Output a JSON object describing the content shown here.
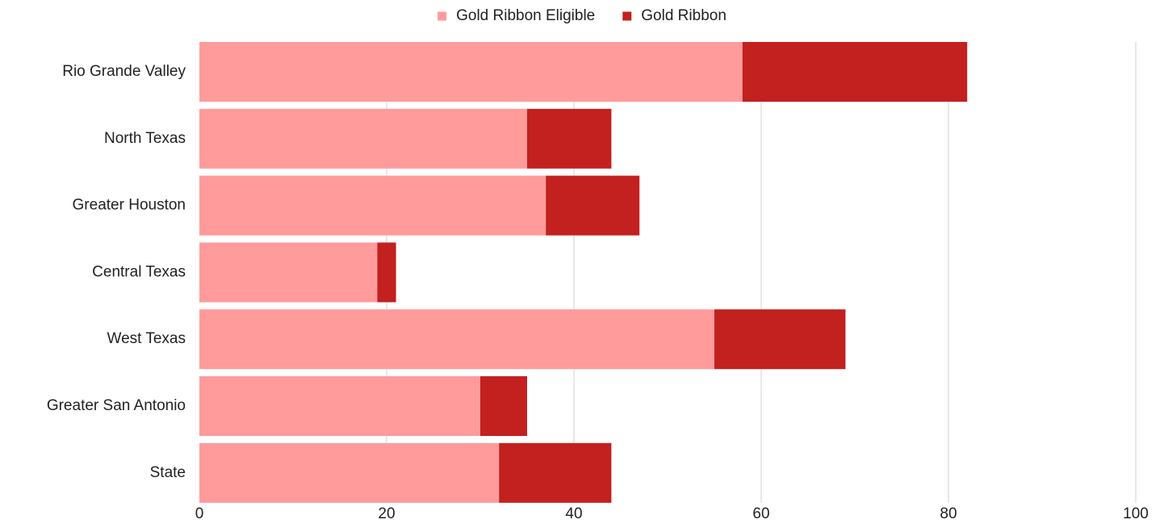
{
  "chart_data": {
    "type": "bar",
    "orientation": "horizontal",
    "stacked": true,
    "categories": [
      "Rio Grande Valley",
      "North Texas",
      "Greater Houston",
      "Central Texas",
      "West Texas",
      "Greater San Antonio",
      "State"
    ],
    "series": [
      {
        "name": "Gold Ribbon Eligible",
        "color": "#ff9b9b",
        "values": [
          58,
          35,
          37,
          19,
          55,
          30,
          32
        ]
      },
      {
        "name": "Gold Ribbon",
        "color": "#c32020",
        "values": [
          24,
          9,
          10,
          2,
          14,
          5,
          12
        ]
      }
    ],
    "xlim": [
      0,
      100
    ],
    "x_ticks": [
      0,
      20,
      40,
      60,
      80,
      100
    ],
    "x_tick_labels": [
      "0",
      "20",
      "40",
      "60",
      "80",
      "100"
    ],
    "grid": "vertical",
    "legend_position": "top-center",
    "title": "",
    "xlabel": "",
    "ylabel": ""
  }
}
